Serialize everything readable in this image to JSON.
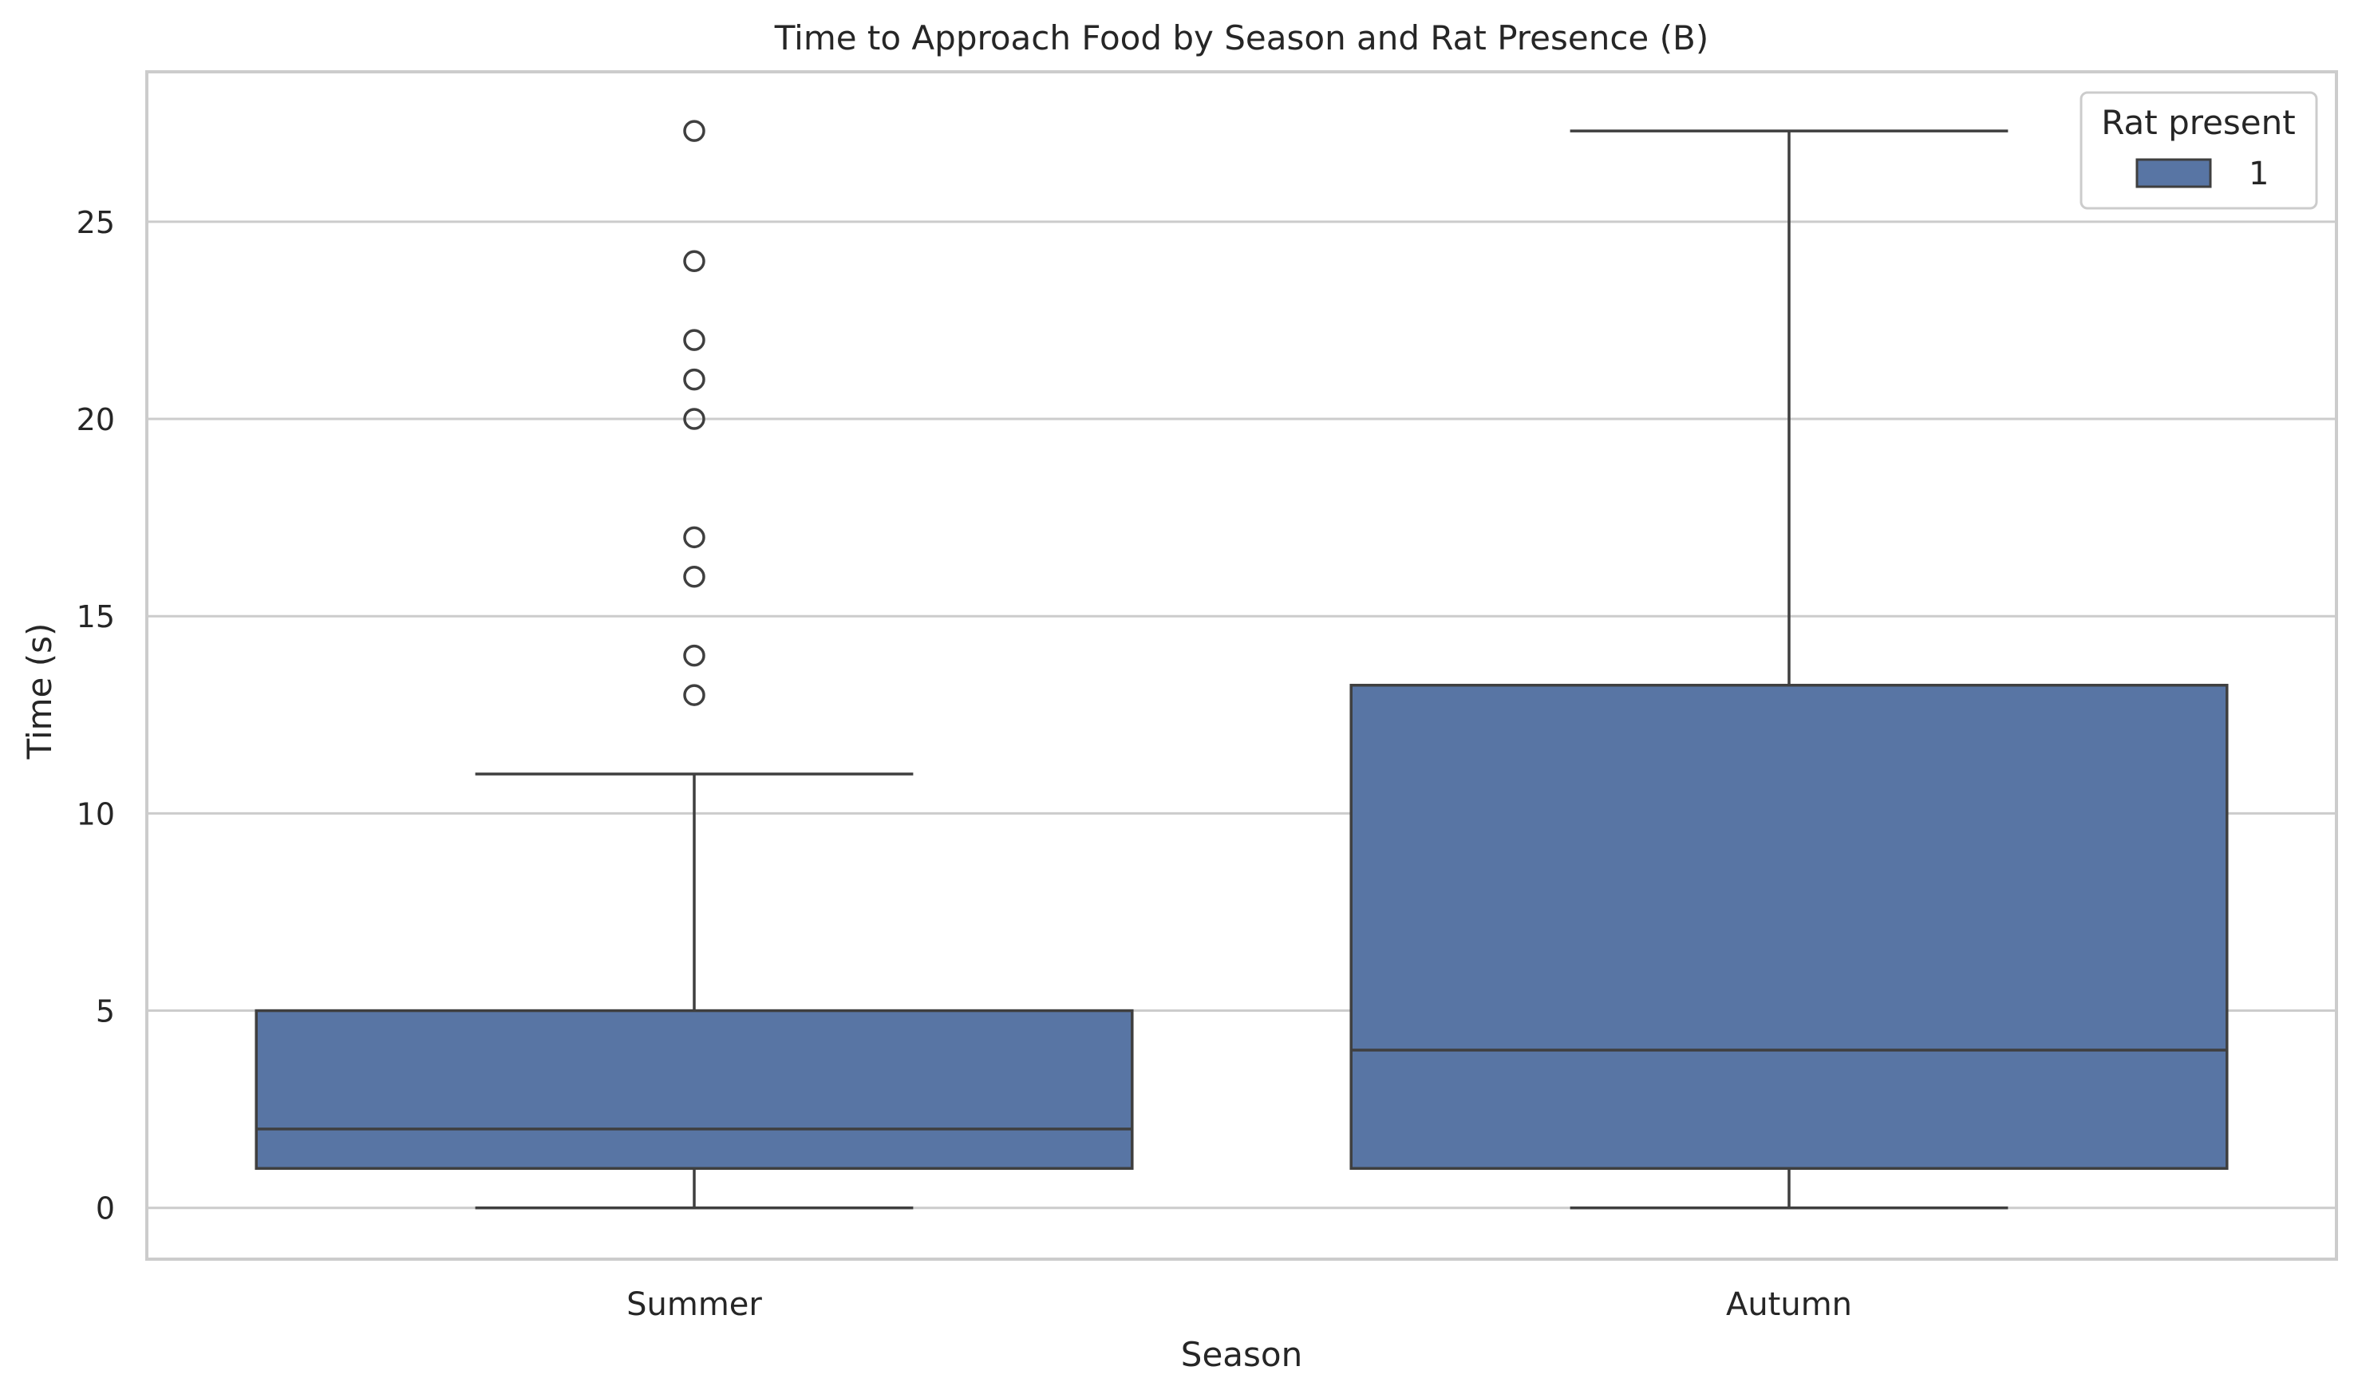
{
  "chart_data": {
    "type": "box",
    "title": "Time to Approach Food by Season and Rat Presence (B)",
    "xlabel": "Season",
    "ylabel": "Time (s)",
    "categories": [
      "Summer",
      "Autumn"
    ],
    "ylim": [
      -1.3,
      28.8
    ],
    "yticks": [
      0,
      5,
      10,
      15,
      20,
      25
    ],
    "grid": "horizontal",
    "legend": {
      "title": "Rat present",
      "position": "top-right",
      "entries": [
        {
          "label": "1",
          "color": "#5875a4"
        }
      ]
    },
    "series": [
      {
        "name": "1",
        "color": "#5875a4",
        "boxes": [
          {
            "category": "Summer",
            "whisker_low": 0,
            "q1": 1,
            "median": 2,
            "q3": 5,
            "whisker_high": 11,
            "outliers": [
              13,
              14,
              16,
              17,
              20,
              21,
              22,
              24,
              27.3
            ]
          },
          {
            "category": "Autumn",
            "whisker_low": 0,
            "q1": 1,
            "median": 4,
            "q3": 13.25,
            "whisker_high": 27.3,
            "outliers": []
          }
        ]
      }
    ]
  }
}
